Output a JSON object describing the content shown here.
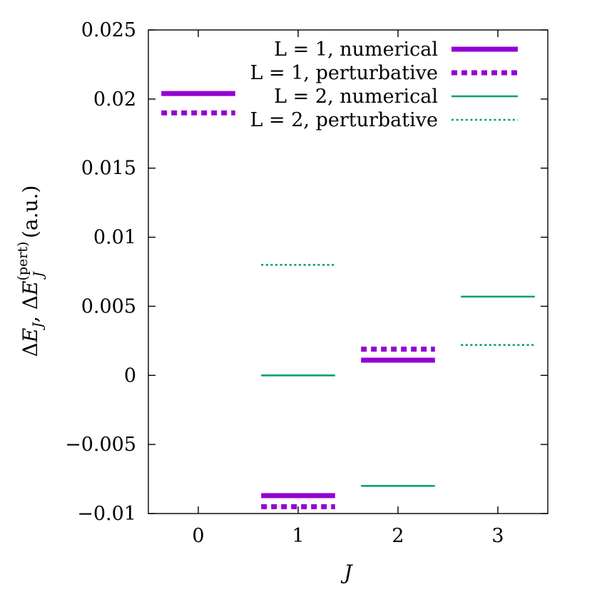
{
  "chart_data": {
    "type": "line",
    "title": "",
    "xlabel": "J",
    "ylabel": "ΔE_J, ΔE_J^(pert) (a.u.)",
    "xlim": [
      -0.5,
      3.5
    ],
    "ylim": [
      -0.01,
      0.025
    ],
    "x_ticks": [
      "0",
      "1",
      "2",
      "3"
    ],
    "y_ticks": [
      "0.025",
      "0.02",
      "0.015",
      "0.01",
      "0.005",
      "0",
      "−0.005",
      "−0.01"
    ],
    "legend_position": "top-right",
    "grid": false,
    "series": [
      {
        "name": "L = 1, numerical",
        "color": "#9400D3",
        "style": "solid-thick",
        "points": [
          {
            "J": 0,
            "value": 0.0204
          },
          {
            "J": 1,
            "value": -0.0087
          },
          {
            "J": 2,
            "value": 0.0011
          }
        ]
      },
      {
        "name": "L = 1, perturbative",
        "color": "#9400D3",
        "style": "dotted-thick",
        "points": [
          {
            "J": 0,
            "value": 0.019
          },
          {
            "J": 1,
            "value": -0.0095
          },
          {
            "J": 2,
            "value": 0.0019
          }
        ]
      },
      {
        "name": "L = 2, numerical",
        "color": "#009E73",
        "style": "solid-thin",
        "points": [
          {
            "J": 1,
            "value": 0.0
          },
          {
            "J": 2,
            "value": -0.008
          },
          {
            "J": 3,
            "value": 0.0057
          }
        ]
      },
      {
        "name": "L = 2, perturbative",
        "color": "#009E73",
        "style": "dotted-thin",
        "points": [
          {
            "J": 1,
            "value": 0.008
          },
          {
            "J": 3,
            "value": 0.0022
          }
        ]
      }
    ]
  }
}
